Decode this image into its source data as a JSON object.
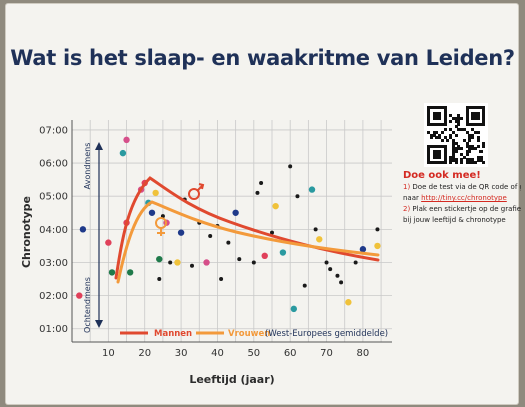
{
  "poster": {
    "title": "Wat is het slaap- en waakritme van Leiden?",
    "y_axis_label": "Chronotype",
    "x_axis_label": "Leeftijd (jaar)",
    "y_ticks": [
      "01:00",
      "02:00",
      "03:00",
      "04:00",
      "05:00",
      "06:00",
      "07:00"
    ],
    "x_ticks": [
      "10",
      "20",
      "30",
      "40",
      "50",
      "60",
      "70",
      "80"
    ],
    "side_top": "Avondmens",
    "side_bottom": "Ochtendmens",
    "legend": {
      "men": "Mannen",
      "women": "Vrouwen",
      "note": "(West-Europees gemiddelde)"
    },
    "call_to_action": {
      "heading": "Doe ook mee!",
      "step1_num": "1)",
      "step1_text": "Doe de test via de QR code of ga",
      "step1b_text": "naar",
      "step1_link": "http://tiny.cc/chronotype",
      "step2_num": "2)",
      "step2_text": "Plak een stickertje op de grafiek",
      "step2b_text": "bij jouw leeftijd & chronotype"
    },
    "colors": {
      "title": "#1f3158",
      "men_line": "#e0492f",
      "women_line": "#f39a3b",
      "accent": "#d42a22"
    },
    "icons": [
      "male-symbol-icon",
      "female-symbol-icon",
      "qr-code-icon",
      "double-arrow-icon"
    ]
  }
}
